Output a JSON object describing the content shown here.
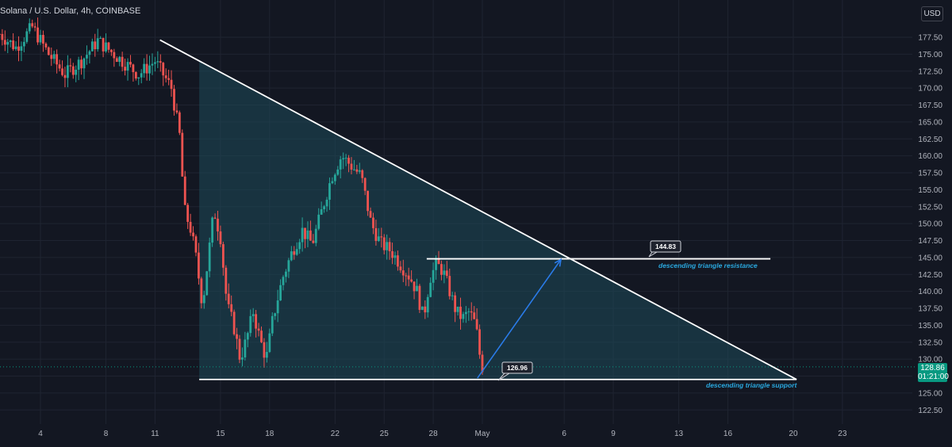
{
  "header": {
    "symbol": "Solana / U.S. Dollar, 4h, COINBASE"
  },
  "currency_button": {
    "label": "USD"
  },
  "current_price": {
    "value": "128.86",
    "countdown": "01:21:00"
  },
  "colors": {
    "background": "#131722",
    "up": "#26a69a",
    "down": "#ef5350",
    "triangle_fill": "#1e4a5a",
    "line": "#ffffff",
    "arrow": "#2a7be8",
    "annotation": "#2aa9e0",
    "last_price": "#089981"
  },
  "chart_data": {
    "type": "candlestick",
    "y_axis": {
      "ticks": [
        "177.50",
        "175.00",
        "172.50",
        "170.00",
        "167.50",
        "165.00",
        "162.50",
        "160.00",
        "157.50",
        "155.00",
        "152.50",
        "150.00",
        "147.50",
        "145.00",
        "142.50",
        "140.00",
        "137.50",
        "135.00",
        "132.50",
        "130.00",
        "127.50",
        "125.00",
        "122.50"
      ]
    },
    "x_axis": {
      "ticks": [
        {
          "label": "4",
          "day": 4
        },
        {
          "label": "8",
          "day": 8
        },
        {
          "label": "11",
          "day": 11
        },
        {
          "label": "15",
          "day": 15
        },
        {
          "label": "18",
          "day": 18
        },
        {
          "label": "22",
          "day": 22
        },
        {
          "label": "25",
          "day": 25
        },
        {
          "label": "28",
          "day": 28
        },
        {
          "label": "May",
          "day": 31
        },
        {
          "label": "6",
          "day": 36
        },
        {
          "label": "9",
          "day": 39
        },
        {
          "label": "13",
          "day": 43
        },
        {
          "label": "16",
          "day": 46
        },
        {
          "label": "20",
          "day": 50
        },
        {
          "label": "23",
          "day": 53
        }
      ]
    },
    "price_path": [
      [
        1.5,
        178
      ],
      [
        2.5,
        176
      ],
      [
        3.5,
        179
      ],
      [
        4.5,
        175
      ],
      [
        5.5,
        172
      ],
      [
        6.5,
        174
      ],
      [
        7.5,
        177
      ],
      [
        8.5,
        175
      ],
      [
        9.0,
        174
      ],
      [
        10.0,
        172
      ],
      [
        11.0,
        174
      ],
      [
        11.5,
        172
      ],
      [
        12.0,
        170
      ],
      [
        12.5,
        163
      ],
      [
        12.8,
        152
      ],
      [
        13.2,
        149
      ],
      [
        13.5,
        145
      ],
      [
        13.9,
        138
      ],
      [
        14.2,
        144
      ],
      [
        14.6,
        152
      ],
      [
        15.0,
        148
      ],
      [
        15.4,
        138
      ],
      [
        15.8,
        135
      ],
      [
        16.2,
        130
      ],
      [
        16.6,
        133
      ],
      [
        17.0,
        137
      ],
      [
        17.4,
        133
      ],
      [
        17.8,
        130
      ],
      [
        18.2,
        136
      ],
      [
        18.8,
        142
      ],
      [
        19.4,
        146
      ],
      [
        20.0,
        149
      ],
      [
        20.6,
        147
      ],
      [
        21.2,
        152
      ],
      [
        21.8,
        157
      ],
      [
        22.4,
        160
      ],
      [
        22.8,
        159
      ],
      [
        23.2,
        158
      ],
      [
        23.6,
        157
      ],
      [
        24.2,
        150
      ],
      [
        24.8,
        147
      ],
      [
        25.4,
        146
      ],
      [
        26.0,
        144
      ],
      [
        26.6,
        142
      ],
      [
        27.0,
        140
      ],
      [
        27.4,
        136
      ],
      [
        27.8,
        142
      ],
      [
        28.2,
        144
      ],
      [
        28.6,
        143
      ],
      [
        29.0,
        140
      ],
      [
        29.4,
        137
      ],
      [
        29.8,
        136
      ],
      [
        30.2,
        137
      ],
      [
        30.6,
        135
      ],
      [
        30.9,
        129.5
      ],
      [
        31.0,
        128.86
      ]
    ],
    "annotations": [
      {
        "text": "descending triangle resistance",
        "callout": "144.83"
      },
      {
        "text": "descending triangle support",
        "callout": "126.96"
      }
    ],
    "drawings": {
      "resistance_line": {
        "from": {
          "day": 11.3,
          "price": 177.1
        },
        "to": {
          "day": 50.2,
          "price": 127.0
        }
      },
      "support_line": {
        "from": {
          "day": 13.7,
          "price": 127.0
        },
        "to": {
          "day": 50.2,
          "price": 127.0
        }
      },
      "resistance_level": {
        "price": 144.8,
        "from_day": 27.6,
        "to_day": 48.6
      },
      "arrow": {
        "from": {
          "day": 30.7,
          "price": 127.2
        },
        "to": {
          "day": 35.8,
          "price": 144.7
        }
      }
    }
  }
}
